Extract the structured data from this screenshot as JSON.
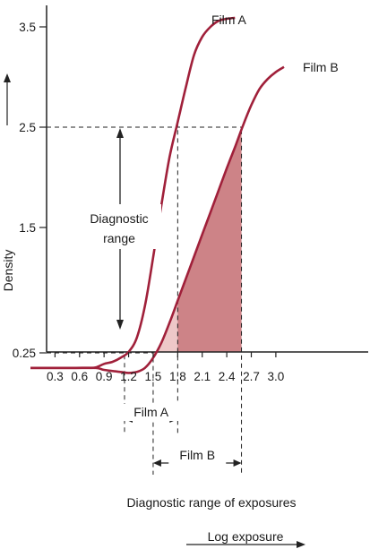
{
  "chart_data": {
    "type": "line",
    "ylabel": "Density",
    "xlabel": "Log exposure",
    "caption": "Diagnostic range of exposures",
    "range_label_line1": "Diagnostic",
    "range_label_line2": "range",
    "x_ticks": [
      "0.3",
      "0.6",
      "0.9",
      "1.2",
      "1.5",
      "1.8",
      "2.1",
      "2.4",
      "2.7",
      "3.0"
    ],
    "y_ticks": [
      "0.25",
      "1.5",
      "2.5",
      "3.5"
    ],
    "xlim": [
      0,
      3.1
    ],
    "ylim": [
      0.1,
      3.6
    ],
    "diagnostic_range": [
      0.25,
      2.5
    ],
    "series": [
      {
        "name": "Film A",
        "color": "#a0203a",
        "points": [
          [
            0.0,
            0.1
          ],
          [
            0.5,
            0.1
          ],
          [
            0.7,
            0.1
          ],
          [
            0.8,
            0.105
          ],
          [
            0.9,
            0.14
          ],
          [
            1.0,
            0.16
          ],
          [
            1.1,
            0.2
          ],
          [
            1.2,
            0.26
          ],
          [
            1.3,
            0.4
          ],
          [
            1.4,
            0.72
          ],
          [
            1.5,
            1.2
          ],
          [
            1.6,
            1.72
          ],
          [
            1.7,
            2.2
          ],
          [
            1.8,
            2.55
          ],
          [
            1.9,
            2.9
          ],
          [
            2.0,
            3.22
          ],
          [
            2.1,
            3.4
          ],
          [
            2.2,
            3.5
          ],
          [
            2.3,
            3.56
          ],
          [
            2.4,
            3.58
          ],
          [
            2.5,
            3.59
          ]
        ],
        "diagnostic_exposure": [
          1.15,
          1.8
        ]
      },
      {
        "name": "Film B",
        "color": "#a0203a",
        "fill_color": "#c8757a",
        "points": [
          [
            0.0,
            0.1
          ],
          [
            0.5,
            0.1
          ],
          [
            0.8,
            0.1
          ],
          [
            0.9,
            0.08
          ],
          [
            1.1,
            0.06
          ],
          [
            1.2,
            0.05
          ],
          [
            1.3,
            0.06
          ],
          [
            1.4,
            0.1
          ],
          [
            1.5,
            0.2
          ],
          [
            1.6,
            0.35
          ],
          [
            1.7,
            0.55
          ],
          [
            1.8,
            0.77
          ],
          [
            1.9,
            0.99
          ],
          [
            2.0,
            1.21
          ],
          [
            2.1,
            1.43
          ],
          [
            2.2,
            1.65
          ],
          [
            2.3,
            1.87
          ],
          [
            2.4,
            2.09
          ],
          [
            2.5,
            2.3
          ],
          [
            2.6,
            2.52
          ],
          [
            2.7,
            2.72
          ],
          [
            2.8,
            2.88
          ],
          [
            2.9,
            2.98
          ],
          [
            3.0,
            3.05
          ],
          [
            3.1,
            3.1
          ]
        ],
        "diagnostic_exposure": [
          1.5,
          2.58
        ]
      }
    ]
  }
}
